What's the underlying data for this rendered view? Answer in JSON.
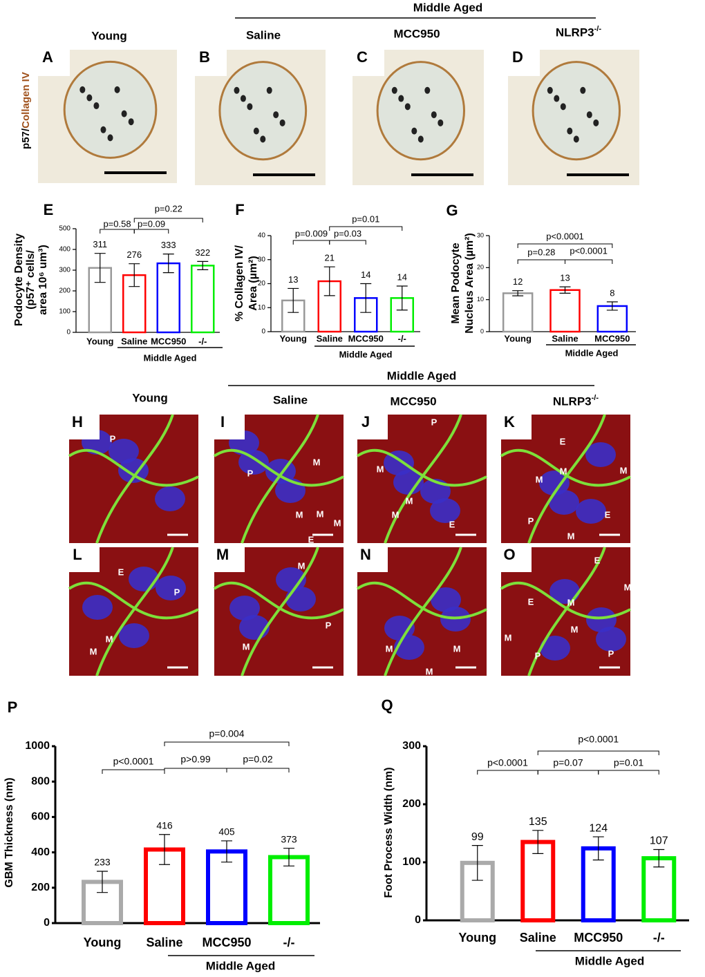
{
  "top_header": {
    "group": "Middle Aged",
    "columns": [
      "Young",
      "Saline",
      "MCC950",
      "NLRP3"
    ],
    "superscript": "-/-"
  },
  "stain_label": [
    "p57/",
    "Collagen IV"
  ],
  "top_panels": [
    "A",
    "B",
    "C",
    "D"
  ],
  "mid_header": {
    "group": "Middle Aged",
    "columns": [
      "Young",
      "Saline",
      "MCC950",
      "NLRP3"
    ],
    "superscript": "-/-"
  },
  "fluor_panels": [
    {
      "letter": "H",
      "labels": [
        "P"
      ]
    },
    {
      "letter": "I",
      "labels": [
        "P",
        "M",
        "M",
        "M",
        "M",
        "E"
      ]
    },
    {
      "letter": "J",
      "labels": [
        "P",
        "M",
        "M",
        "M",
        "E"
      ]
    },
    {
      "letter": "K",
      "labels": [
        "E",
        "M",
        "M",
        "M",
        "E",
        "P",
        "M"
      ]
    },
    {
      "letter": "L",
      "labels": [
        "E",
        "P",
        "M",
        "M"
      ]
    },
    {
      "letter": "M",
      "labels": [
        "M",
        "P",
        "M"
      ]
    },
    {
      "letter": "N",
      "labels": [
        "M",
        "M",
        "M"
      ]
    },
    {
      "letter": "O",
      "labels": [
        "E",
        "M",
        "E",
        "M",
        "M",
        "M",
        "P",
        "P"
      ]
    }
  ],
  "chart_data": [
    {
      "type": "bar",
      "panel": "E",
      "ylabel": [
        "Podocyte Density",
        "(p57⁺ cells/",
        "area 10⁶ um³)"
      ],
      "categories": [
        "Young",
        "Saline",
        "MCC950",
        "-/-"
      ],
      "group": "Middle Aged",
      "values": [
        311,
        276,
        333,
        322
      ],
      "errors": [
        70,
        55,
        45,
        20
      ],
      "colors": [
        "#999999",
        "#ff0000",
        "#0000ff",
        "#00ee00"
      ],
      "ylim": [
        0,
        500
      ],
      "yticks": [
        0,
        100,
        200,
        300,
        400,
        500
      ],
      "annotations": [
        "p=0.58",
        "p=0.09",
        "p=0.22"
      ]
    },
    {
      "type": "bar",
      "panel": "F",
      "ylabel": [
        "% Collagen IV/",
        "Area (µm²)"
      ],
      "categories": [
        "Young",
        "Saline",
        "MCC950",
        "-/-"
      ],
      "group": "Middle Aged",
      "values": [
        13,
        21,
        14,
        14
      ],
      "errors": [
        5,
        6,
        6,
        5
      ],
      "colors": [
        "#999999",
        "#ff0000",
        "#0000ff",
        "#00ee00"
      ],
      "ylim": [
        0,
        40
      ],
      "yticks": [
        0,
        10,
        20,
        30,
        40
      ],
      "annotations": [
        "p=0.009",
        "p=0.03",
        "p=0.01"
      ]
    },
    {
      "type": "bar",
      "panel": "G",
      "ylabel": [
        "Mean Podocyte",
        "Nucleus Area (µm²)"
      ],
      "categories": [
        "Young",
        "Saline",
        "MCC950"
      ],
      "group": "Middle Aged",
      "values": [
        12,
        13,
        8
      ],
      "errors": [
        0.8,
        1,
        1.3
      ],
      "colors": [
        "#999999",
        "#ff0000",
        "#0000ff"
      ],
      "ylim": [
        0,
        30
      ],
      "yticks": [
        0,
        10,
        20,
        30
      ],
      "annotations": [
        "p=0.28",
        "p<0.0001",
        "p<0.0001"
      ]
    },
    {
      "type": "bar",
      "panel": "P",
      "ylabel": [
        "GBM Thickness (nm)"
      ],
      "categories": [
        "Young",
        "Saline",
        "MCC950",
        "-/-"
      ],
      "group": "Middle Aged",
      "values": [
        233,
        416,
        405,
        373
      ],
      "errors": [
        60,
        85,
        60,
        50
      ],
      "colors": [
        "#aaaaaa",
        "#ff0000",
        "#0000ff",
        "#00ee00"
      ],
      "ylim": [
        0,
        1000
      ],
      "yticks": [
        0,
        200,
        400,
        600,
        800,
        1000
      ],
      "annotations": [
        "p<0.0001",
        "p>0.99",
        "p=0.02",
        "p=0.004"
      ]
    },
    {
      "type": "bar",
      "panel": "Q",
      "ylabel": [
        "Foot Process Width (nm)"
      ],
      "categories": [
        "Young",
        "Saline",
        "MCC950",
        "-/-"
      ],
      "group": "Middle Aged",
      "values": [
        99,
        135,
        124,
        107
      ],
      "errors": [
        30,
        20,
        20,
        15
      ],
      "colors": [
        "#aaaaaa",
        "#ff0000",
        "#0000ff",
        "#00ee00"
      ],
      "ylim": [
        0,
        300
      ],
      "yticks": [
        0,
        100,
        200,
        300
      ],
      "annotations": [
        "p<0.0001",
        "p=0.07",
        "p=0.01",
        "p<0.0001"
      ]
    }
  ]
}
